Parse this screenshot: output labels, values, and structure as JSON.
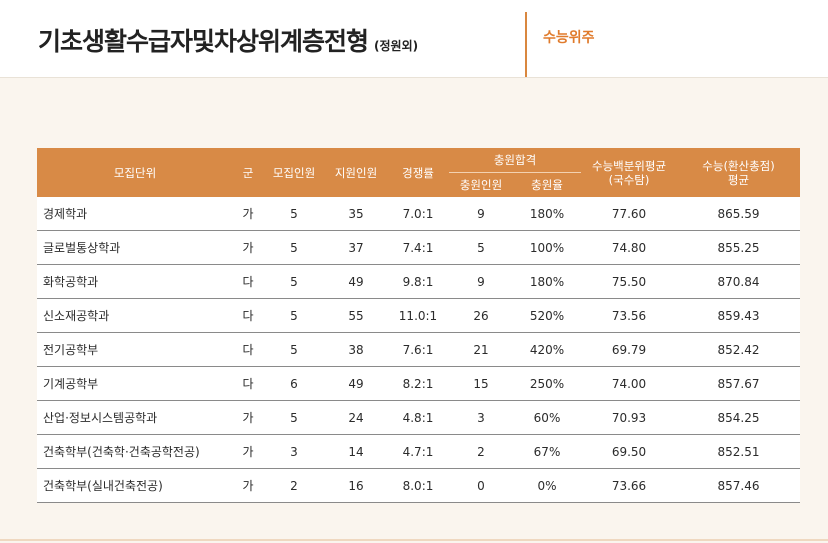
{
  "header": {
    "title": "기초생활수급자및차상위계층전형",
    "subtitle": "(정원외)",
    "badge": "수능위주"
  },
  "table": {
    "headers": {
      "unit": "모집단위",
      "group": "군",
      "quota": "모집인원",
      "applicants": "지원인원",
      "ratio": "경쟁률",
      "additional": "충원합격",
      "additional_count": "충원인원",
      "additional_rate": "충원율",
      "percentile_l1": "수능백분위평균",
      "percentile_l2": "(국수탐)",
      "converted_l1": "수능(환산총점)",
      "converted_l2": "평균"
    },
    "rows": [
      {
        "unit": "경제학과",
        "group": "가",
        "quota": "5",
        "applicants": "35",
        "ratio": "7.0:1",
        "add_count": "9",
        "add_rate": "180%",
        "percentile": "77.60",
        "converted": "865.59"
      },
      {
        "unit": "글로벌통상학과",
        "group": "가",
        "quota": "5",
        "applicants": "37",
        "ratio": "7.4:1",
        "add_count": "5",
        "add_rate": "100%",
        "percentile": "74.80",
        "converted": "855.25"
      },
      {
        "unit": "화학공학과",
        "group": "다",
        "quota": "5",
        "applicants": "49",
        "ratio": "9.8:1",
        "add_count": "9",
        "add_rate": "180%",
        "percentile": "75.50",
        "converted": "870.84"
      },
      {
        "unit": "신소재공학과",
        "group": "다",
        "quota": "5",
        "applicants": "55",
        "ratio": "11.0:1",
        "add_count": "26",
        "add_rate": "520%",
        "percentile": "73.56",
        "converted": "859.43"
      },
      {
        "unit": "전기공학부",
        "group": "다",
        "quota": "5",
        "applicants": "38",
        "ratio": "7.6:1",
        "add_count": "21",
        "add_rate": "420%",
        "percentile": "69.79",
        "converted": "852.42"
      },
      {
        "unit": "기계공학부",
        "group": "다",
        "quota": "6",
        "applicants": "49",
        "ratio": "8.2:1",
        "add_count": "15",
        "add_rate": "250%",
        "percentile": "74.00",
        "converted": "857.67"
      },
      {
        "unit": "산업·정보시스템공학과",
        "group": "가",
        "quota": "5",
        "applicants": "24",
        "ratio": "4.8:1",
        "add_count": "3",
        "add_rate": "60%",
        "percentile": "70.93",
        "converted": "854.25"
      },
      {
        "unit": "건축학부(건축학·건축공학전공)",
        "group": "가",
        "quota": "3",
        "applicants": "14",
        "ratio": "4.7:1",
        "add_count": "2",
        "add_rate": "67%",
        "percentile": "69.50",
        "converted": "852.51"
      },
      {
        "unit": "건축학부(실내건축전공)",
        "group": "가",
        "quota": "2",
        "applicants": "16",
        "ratio": "8.0:1",
        "add_count": "0",
        "add_rate": "0%",
        "percentile": "73.66",
        "converted": "857.46"
      }
    ]
  },
  "colors": {
    "accent": "#d88a46",
    "badge": "#e07b2c",
    "background": "#faf5ee"
  }
}
